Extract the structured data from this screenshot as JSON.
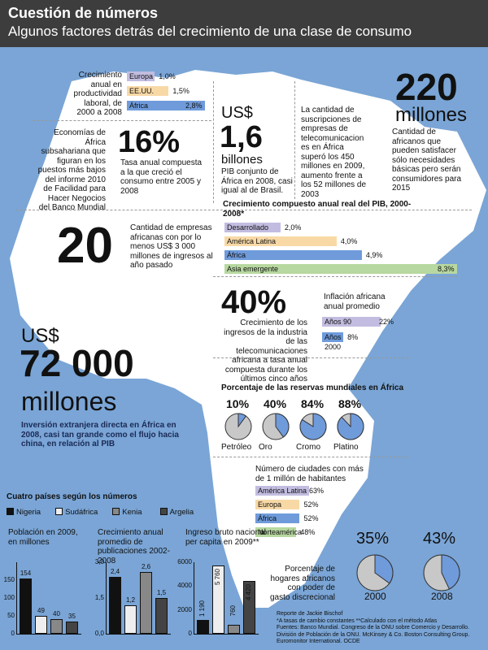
{
  "header": {
    "title": "Cuestión de números",
    "subtitle": "Algunos factores detrás del crecimiento de una clase de consumo"
  },
  "colors": {
    "background": "#7aa5d6",
    "header": "#3d3d3d",
    "lavender": "#c2bde0",
    "peach": "#f8d9a6",
    "blue": "#6f9bdb",
    "green": "#b7d8a0",
    "nigeria": "#111111",
    "sudafrica": "#eeeeee",
    "kenia": "#888888",
    "argelia": "#444444"
  },
  "productivity": {
    "label": "Crecimiento anual en productividad laboral, de 2000 a 2008",
    "rows": [
      {
        "name": "Europa",
        "value": 1.0,
        "label": "1,0%"
      },
      {
        "name": "EE.UU.",
        "value": 1.5,
        "label": "1,5%"
      },
      {
        "name": "África",
        "value": 2.8,
        "label": "2,8%"
      }
    ]
  },
  "gdp": {
    "currency": "US$",
    "value": "1,6",
    "unit": "billones",
    "desc": "PIB conjunto de África en 2008, casi igual al de Brasil."
  },
  "telecom_subs": {
    "desc": "La cantidad de suscripciones de empresas de telecomunicacion es en África superó los 450 millones en 2009, aumento frente a los 52 millones de 2003"
  },
  "consumers": {
    "value": "220",
    "unit": "millones",
    "desc": "Cantidad de africanos que pueden satisfacer sólo necesidades básicas pero serán consumidores para 2015"
  },
  "economies": {
    "desc": "Economías de África subsahariana que figuran en los puestos más bajos del informe 2010 de Facilidad para Hacer Negocios del Banco Mundial",
    "value": "16%",
    "rate_desc": "Tasa anual compuesta a la que creció el consumo entre 2005 y 2008"
  },
  "gdp_growth": {
    "title": "Crecimiento compuesto anual real del PIB, 2000-2008*",
    "rows": [
      {
        "name": "Desarrollado",
        "value": 2.0,
        "label": "2,0%"
      },
      {
        "name": "América Latina",
        "value": 4.0,
        "label": "4,0%"
      },
      {
        "name": "África",
        "value": 4.9,
        "label": "4,9%"
      },
      {
        "name": "Asia emergente",
        "value": 8.3,
        "label": "8,3%"
      }
    ]
  },
  "companies": {
    "value": "20",
    "desc": "Cantidad de empresas africanas con por lo menos US$ 3 000 millones de ingresos al año pasado"
  },
  "telecom_growth": {
    "value": "40%",
    "desc": "Crecimiento de los ingresos de la industria de las telecomunicaciones africana a tasa anual compuesta durante los últimos cinco años"
  },
  "inflation": {
    "title": "Inflación africana anual promedio",
    "rows": [
      {
        "name": "Años 90",
        "value": 22,
        "label": "22%"
      },
      {
        "name": "Años 2000",
        "value": 8,
        "label": "8%"
      }
    ]
  },
  "fdi": {
    "currency": "US$",
    "value": "72 000",
    "unit": "millones",
    "desc": "Inversión extranjera directa en África en 2008, casi tan grande como el flujo hacia china, en relación al PIB"
  },
  "reserves": {
    "title": "Porcentaje de las reservas mundiales en África",
    "items": [
      {
        "name": "Petróleo",
        "value": 10,
        "label": "10%"
      },
      {
        "name": "Oro",
        "value": 40,
        "label": "40%"
      },
      {
        "name": "Cromo",
        "value": 84,
        "label": "84%"
      },
      {
        "name": "Platino",
        "value": 88,
        "label": "88%"
      }
    ]
  },
  "cities": {
    "title": "Número de ciudades con más de 1 millón de habitantes",
    "rows": [
      {
        "name": "América Latina",
        "value": 63,
        "label": "63%"
      },
      {
        "name": "Europa",
        "value": 52,
        "label": "52%"
      },
      {
        "name": "África",
        "value": 52,
        "label": "52%"
      },
      {
        "name": "Norteamérica",
        "value": 48,
        "label": "48%"
      }
    ]
  },
  "households": {
    "desc": "Porcentaje de hogares africanos con poder de gasto discrecional",
    "items": [
      {
        "year": "2000",
        "value": 35,
        "label": "35%"
      },
      {
        "year": "2008",
        "value": 43,
        "label": "43%"
      }
    ]
  },
  "countries": {
    "title": "Cuatro países según los números",
    "legend": [
      "Nigeria",
      "Sudáfrica",
      "Kenia",
      "Argelia"
    ]
  },
  "chart_data": [
    {
      "type": "bar",
      "title": "Población en 2009, en millones",
      "categories": [
        "Nigeria",
        "Sudáfrica",
        "Kenia",
        "Argelia"
      ],
      "values": [
        154,
        49,
        40,
        35
      ],
      "value_labels": [
        "154",
        "49",
        "40",
        "35"
      ],
      "ylim": [
        0,
        200
      ],
      "yticks": [
        "0",
        "50",
        "100",
        "150"
      ]
    },
    {
      "type": "bar",
      "title": "Crecimiento anual promedio de publicaciones 2002-2008",
      "categories": [
        "Nigeria",
        "Sudáfrica",
        "Kenia",
        "Argelia"
      ],
      "values": [
        2.4,
        1.2,
        2.6,
        1.5
      ],
      "value_labels": [
        "2,4",
        "1,2",
        "2,6",
        "1,5"
      ],
      "ylim": [
        0,
        3
      ],
      "yticks": [
        "0,0",
        "1,5",
        "3,0"
      ]
    },
    {
      "type": "bar",
      "title": "Ingreso bruto nacional per capita en 2009**",
      "categories": [
        "Nigeria",
        "Sudáfrica",
        "Kenia",
        "Argelia"
      ],
      "values": [
        1190,
        5760,
        760,
        4420
      ],
      "value_labels": [
        "1 190",
        "5 760",
        "760",
        "4 420"
      ],
      "ylim": [
        0,
        6000
      ],
      "yticks": [
        "0",
        "2000",
        "4000",
        "6000"
      ]
    }
  ],
  "footer": {
    "lines": [
      "Reporte de Jackie Bischof",
      "*A tasas de cambio constantes **Calculado con el método Atlas",
      "Fuentes: Banco Mundial. Congreso de la ONU sobre Comercio y Desarrollo.",
      "División de Población de la ONU. McKinsey & Co. Boston Consulting Group.",
      "Euromonitor International. OCDE"
    ]
  }
}
